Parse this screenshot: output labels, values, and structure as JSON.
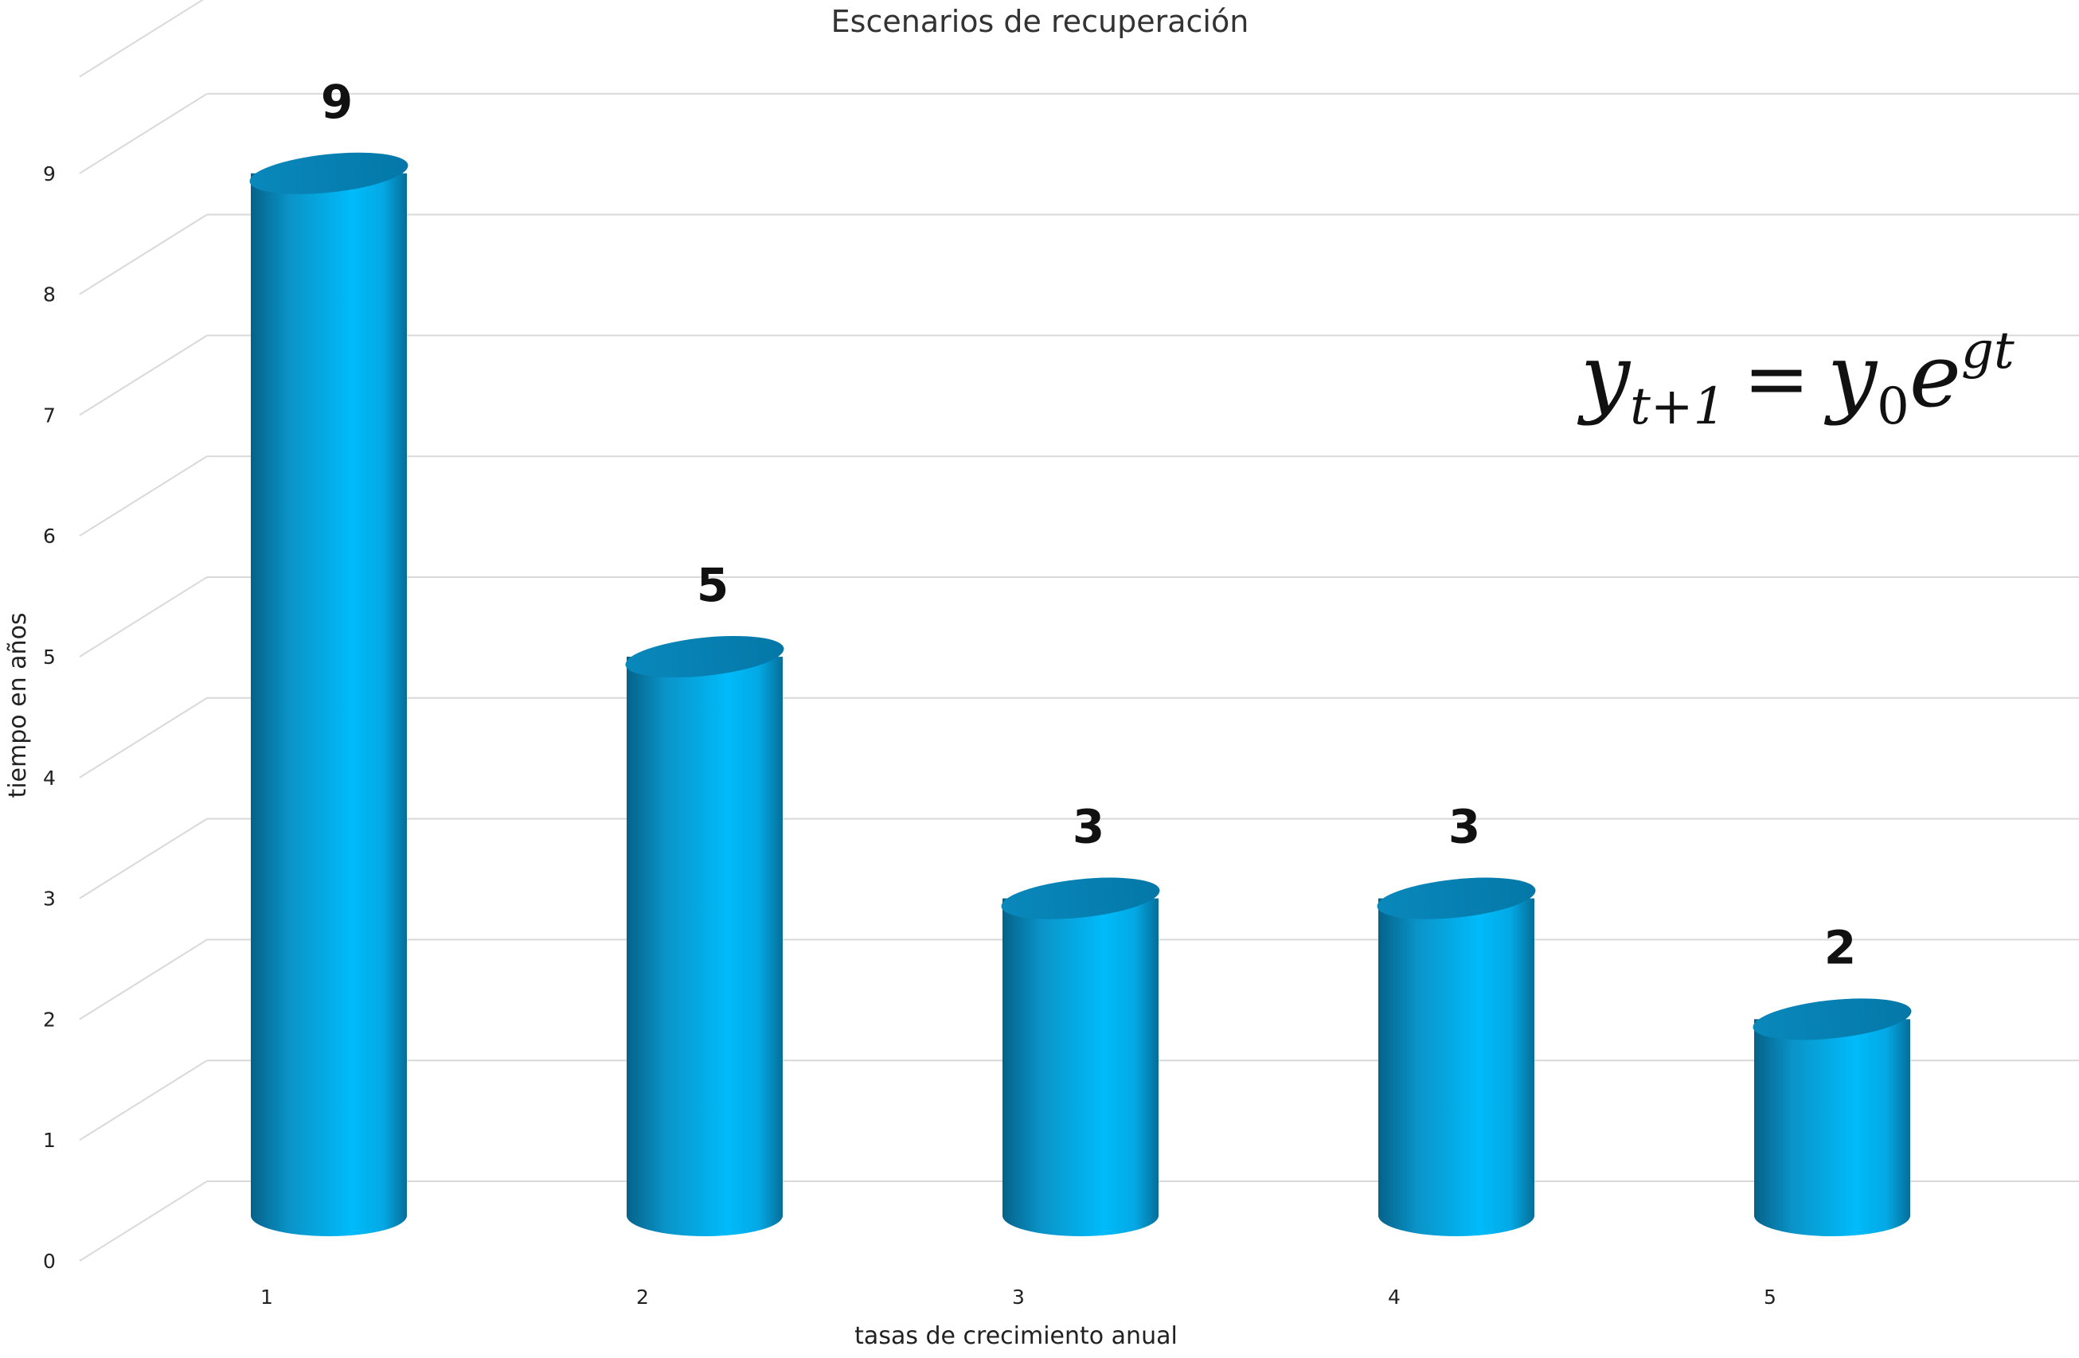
{
  "chart_data": {
    "type": "bar",
    "title": "Escenarios de recuperación",
    "xlabel": "tasas de crecimiento anual",
    "ylabel": "tiempo en años",
    "categories": [
      "1",
      "2",
      "3",
      "4",
      "5"
    ],
    "values": [
      9,
      5,
      3,
      3,
      2
    ],
    "y_ticks": [
      "0",
      "1",
      "2",
      "3",
      "4",
      "5",
      "6",
      "7",
      "8",
      "9"
    ],
    "ylim": [
      0,
      9.8
    ],
    "grid": true,
    "legend": "none",
    "bar_shape": "cylinder",
    "bar_color": "#00B5F5",
    "annotation": {
      "y": "y",
      "t_plus_1": "t+1",
      "equals": "=",
      "y0_base": "y",
      "y0_sub": "0",
      "e": "e",
      "exponent": "gt"
    }
  }
}
